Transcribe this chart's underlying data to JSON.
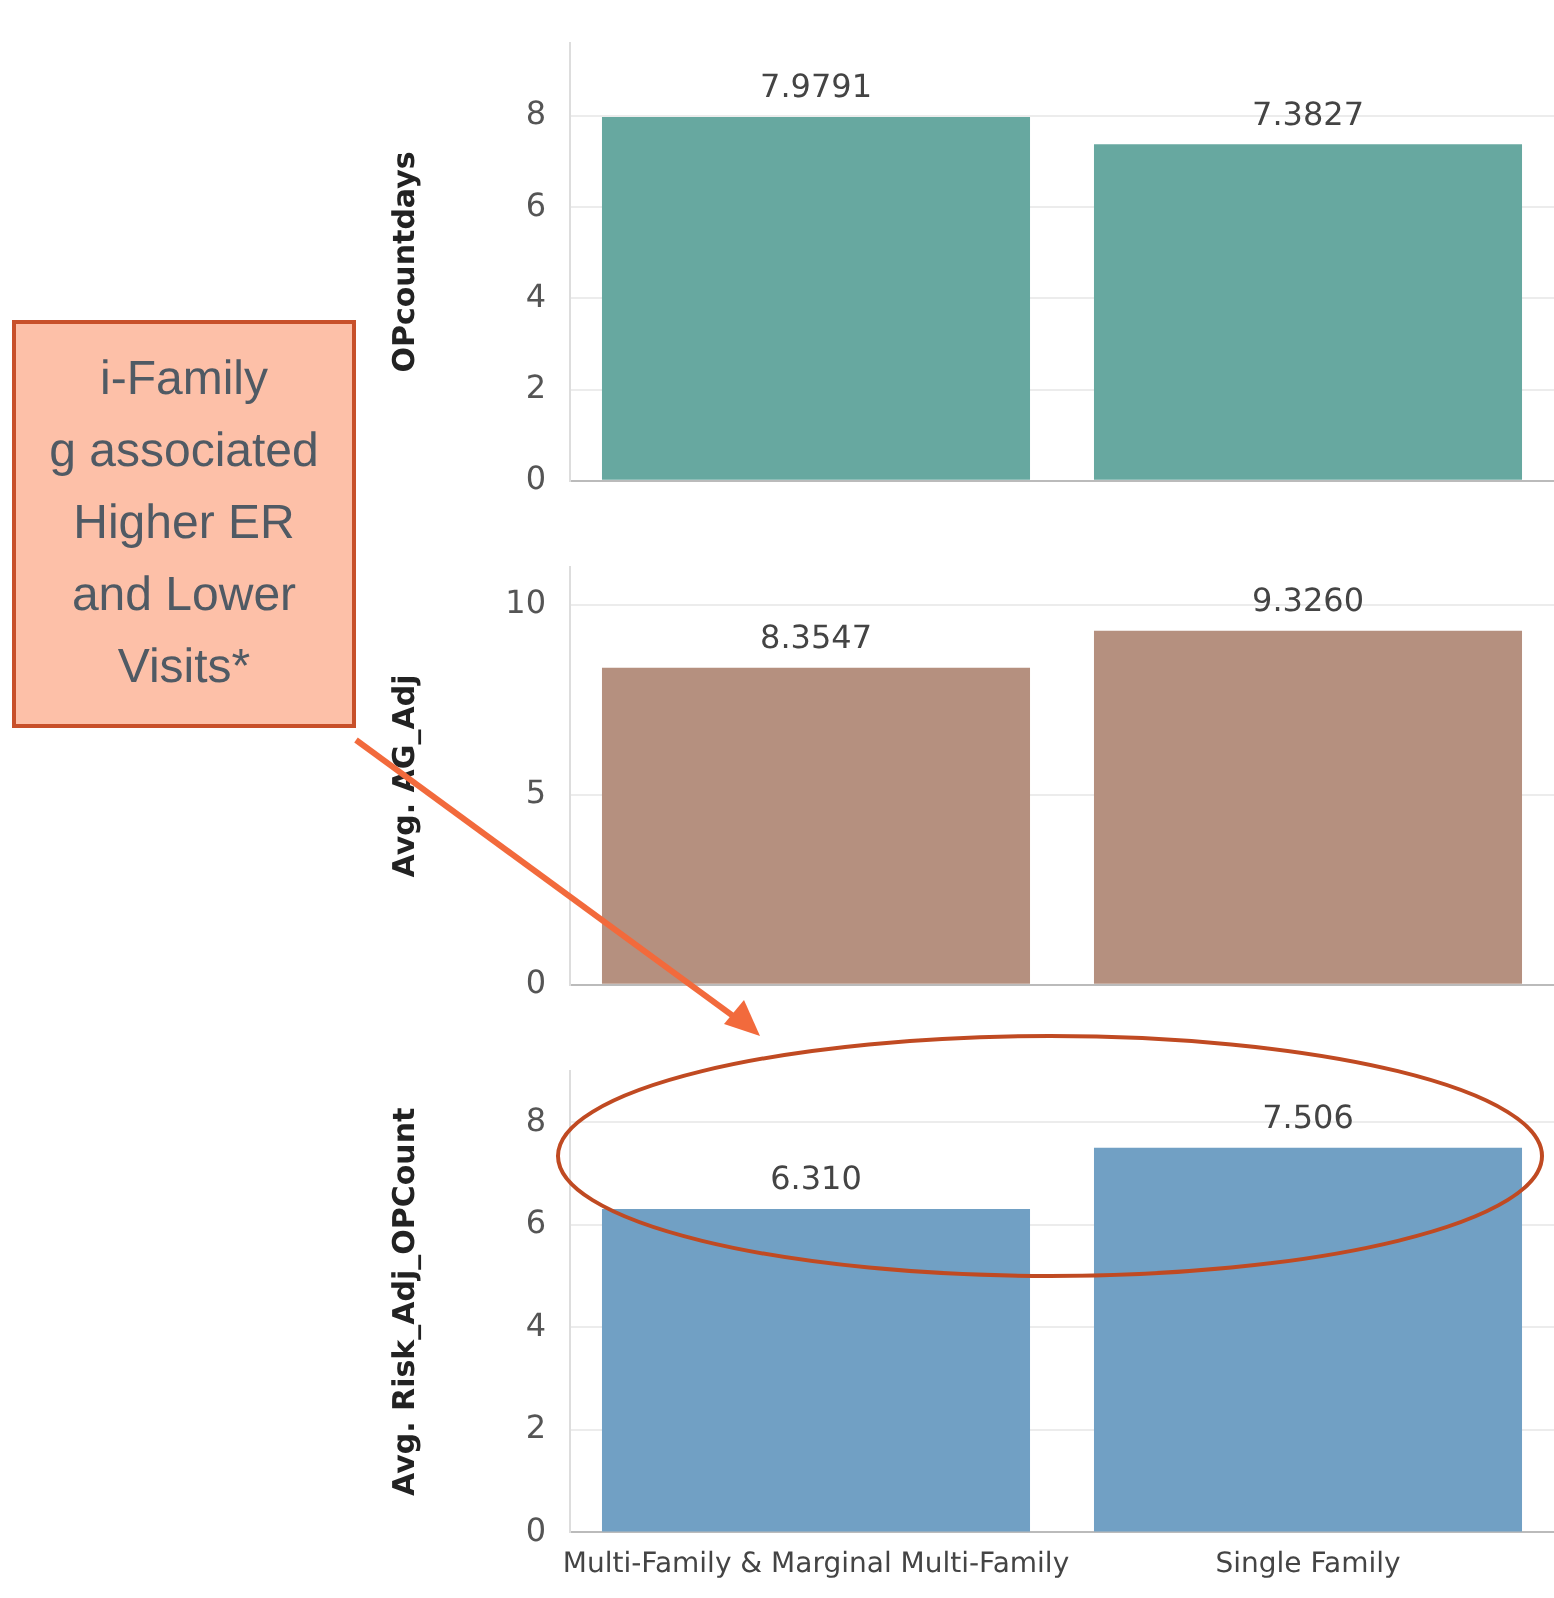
{
  "chart_data": [
    {
      "type": "bar",
      "ylabel": "OPcountdays",
      "categories": [
        null,
        null
      ],
      "values": [
        7.9791,
        7.3827
      ],
      "value_labels": [
        "7.9791",
        "7.3827"
      ],
      "color": "#67a8a0",
      "ylim": [
        0,
        9.6
      ],
      "yticks": [
        0,
        2,
        4,
        6,
        8
      ],
      "grid": "y",
      "legend": false,
      "tick_labels": "y"
    },
    {
      "type": "bar",
      "ylabel": "Avg. AG_Adj",
      "categories": [
        null,
        null
      ],
      "values": [
        8.3547,
        9.326
      ],
      "value_labels": [
        "8.3547",
        "9.3260"
      ],
      "color": "#b5907f",
      "ylim": [
        0,
        11
      ],
      "yticks": [
        0,
        5,
        10
      ],
      "grid": "y",
      "legend": false,
      "tick_labels": "y",
      "annotations": [
        "i-Family\ng associated\nHigher ER\nand Lower\nVisits*"
      ]
    },
    {
      "type": "bar",
      "ylabel": "Avg. Risk_Adj_OPCount",
      "categories": [
        "Multi-Family & Marginal Multi-Family",
        "Single Family"
      ],
      "values": [
        6.31,
        7.506
      ],
      "value_labels": [
        "6.310",
        "7.506"
      ],
      "color": "#71a0c4",
      "ylim": [
        0,
        9
      ],
      "yticks": [
        0,
        2,
        4,
        6,
        8
      ],
      "grid": "y",
      "legend": false
    }
  ]
}
